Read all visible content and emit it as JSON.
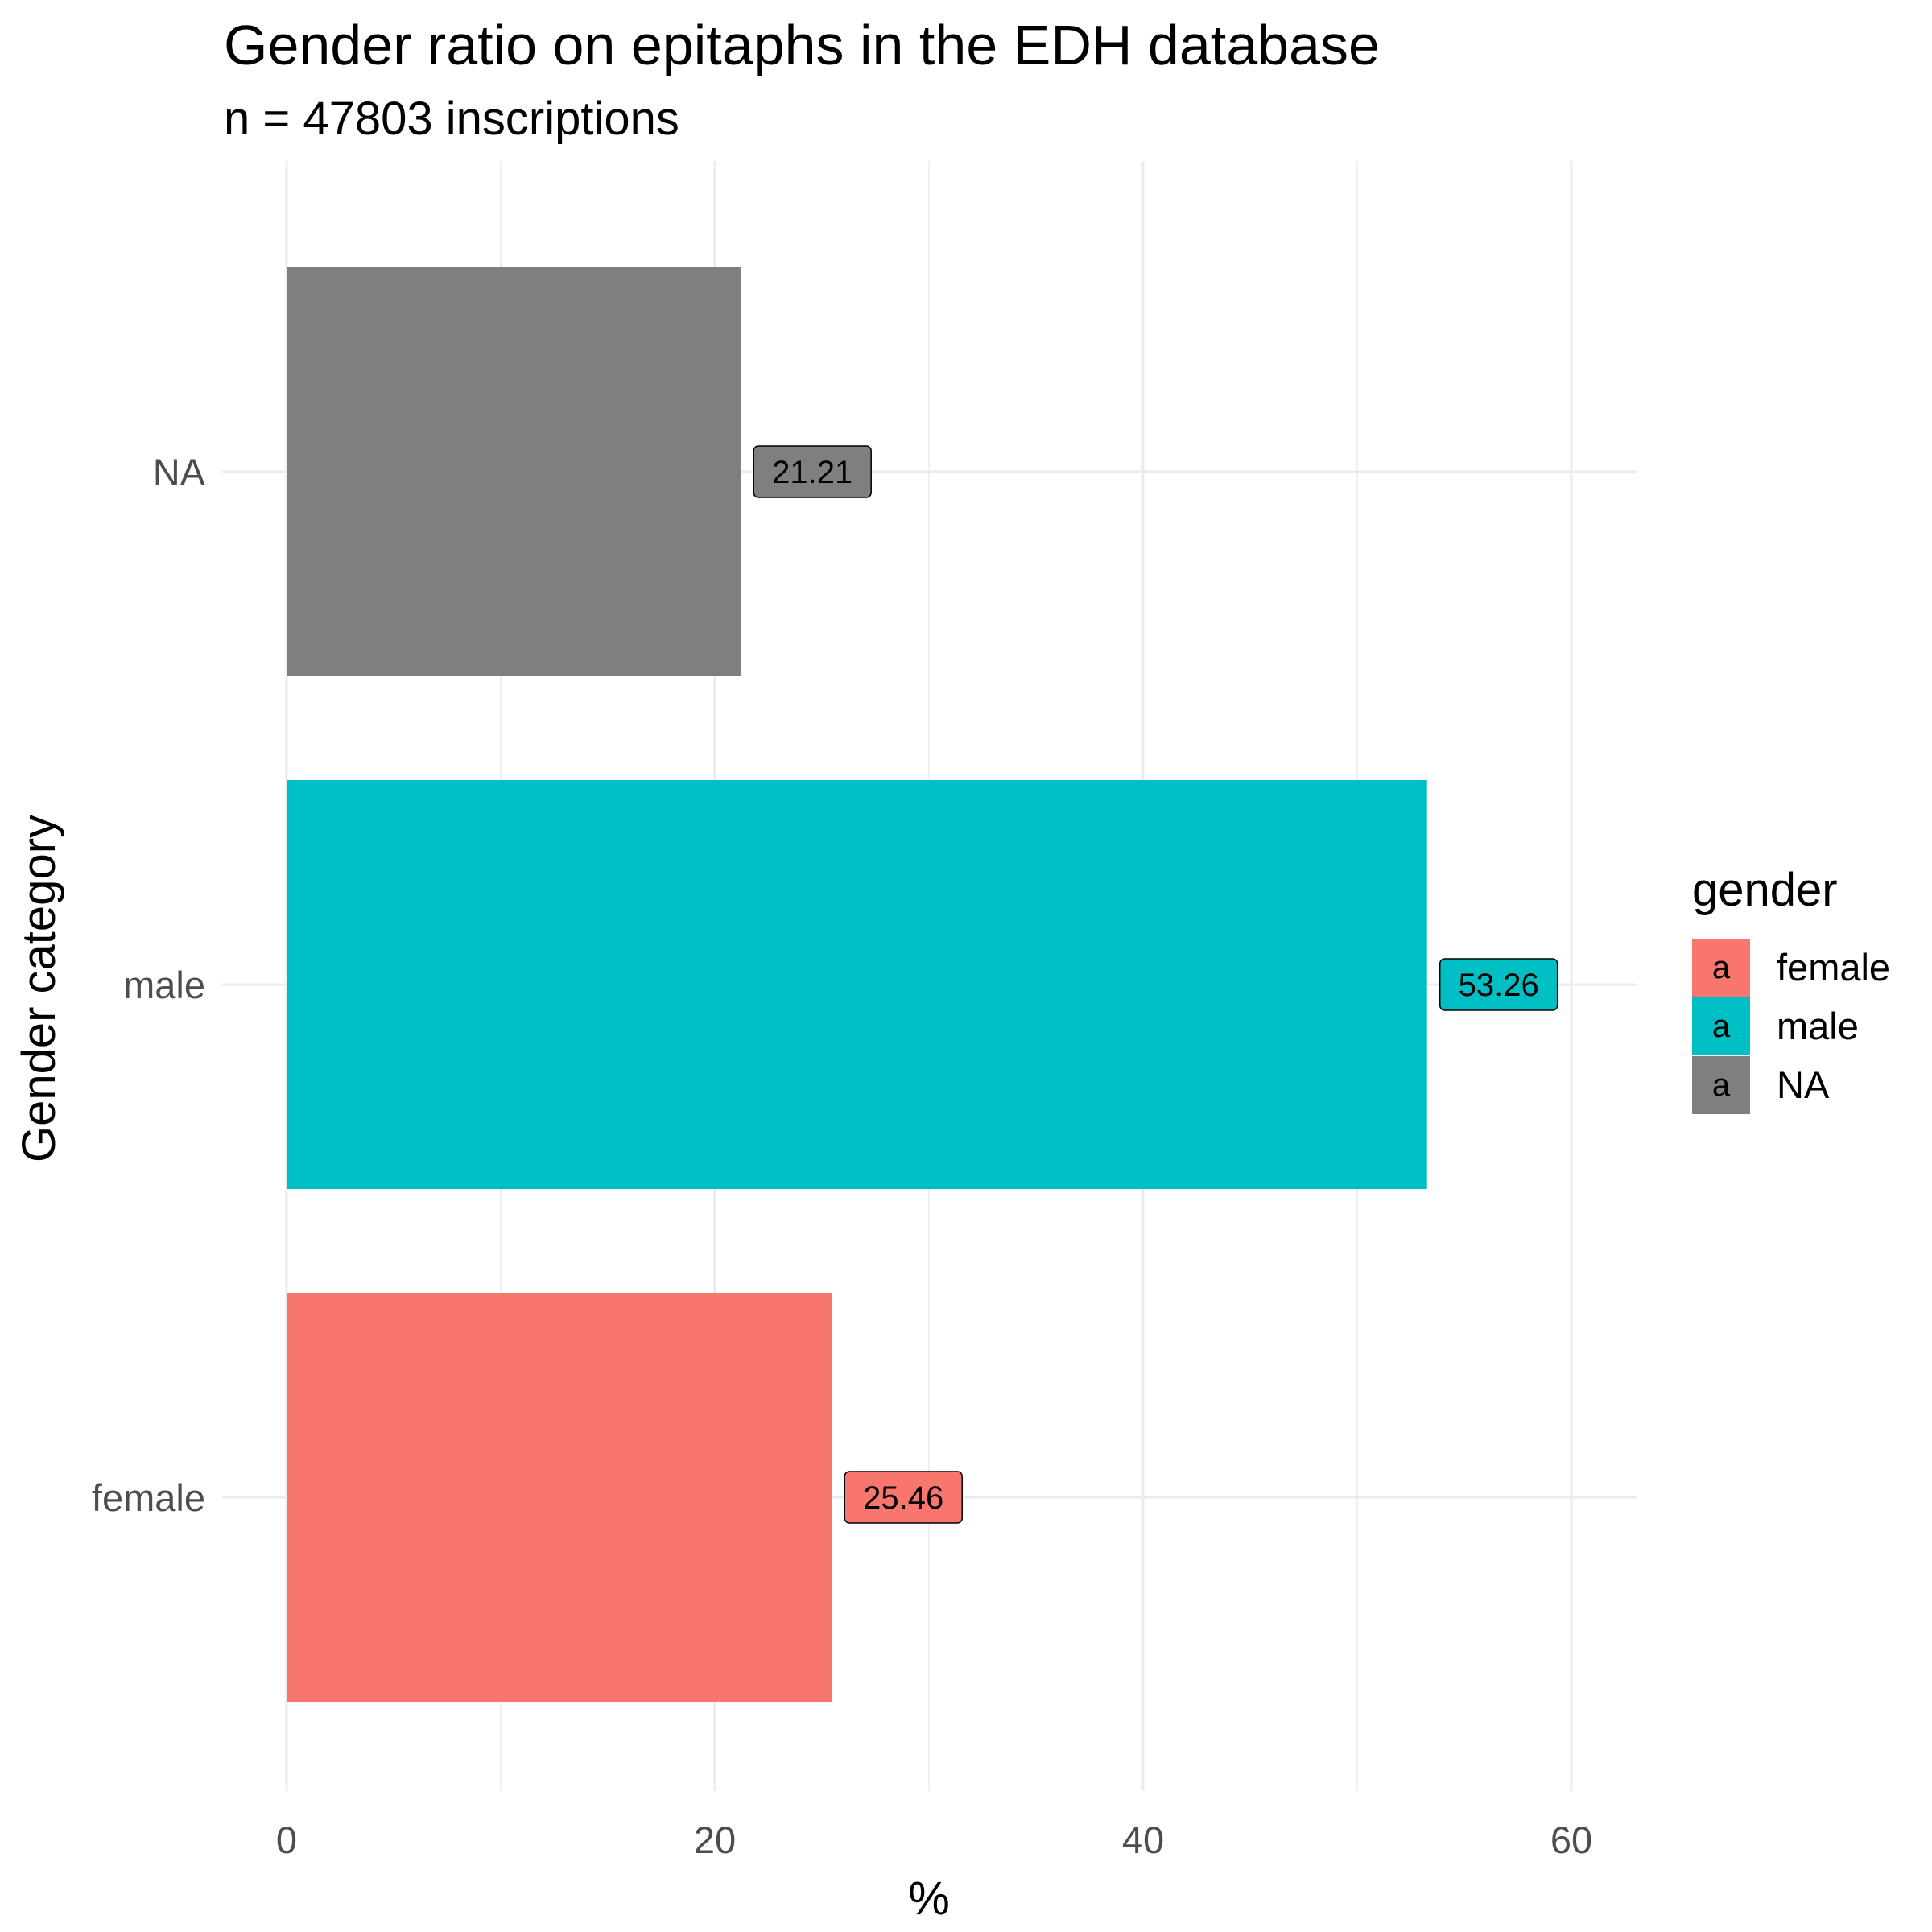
{
  "chart_data": {
    "type": "bar",
    "orientation": "horizontal",
    "title": "Gender ratio on epitaphs in the EDH database",
    "subtitle": "n = 47803 inscriptions",
    "xlabel": "%",
    "ylabel": "Gender category",
    "categories": [
      "female",
      "male",
      "NA"
    ],
    "values": [
      25.46,
      53.26,
      21.21
    ],
    "value_labels": [
      "25.46",
      "53.26",
      "21.21"
    ],
    "colors": [
      "#F8766D",
      "#00BFC4",
      "#7F7F7F"
    ],
    "xlim": [
      0,
      63
    ],
    "x_ticks": [
      0,
      20,
      40,
      60
    ],
    "x_tick_labels": [
      "0",
      "20",
      "40",
      "60"
    ],
    "grid": true,
    "legend": {
      "title": "gender",
      "position": "right",
      "key_glyph": "a",
      "entries": [
        "female",
        "male",
        "NA"
      ]
    }
  }
}
